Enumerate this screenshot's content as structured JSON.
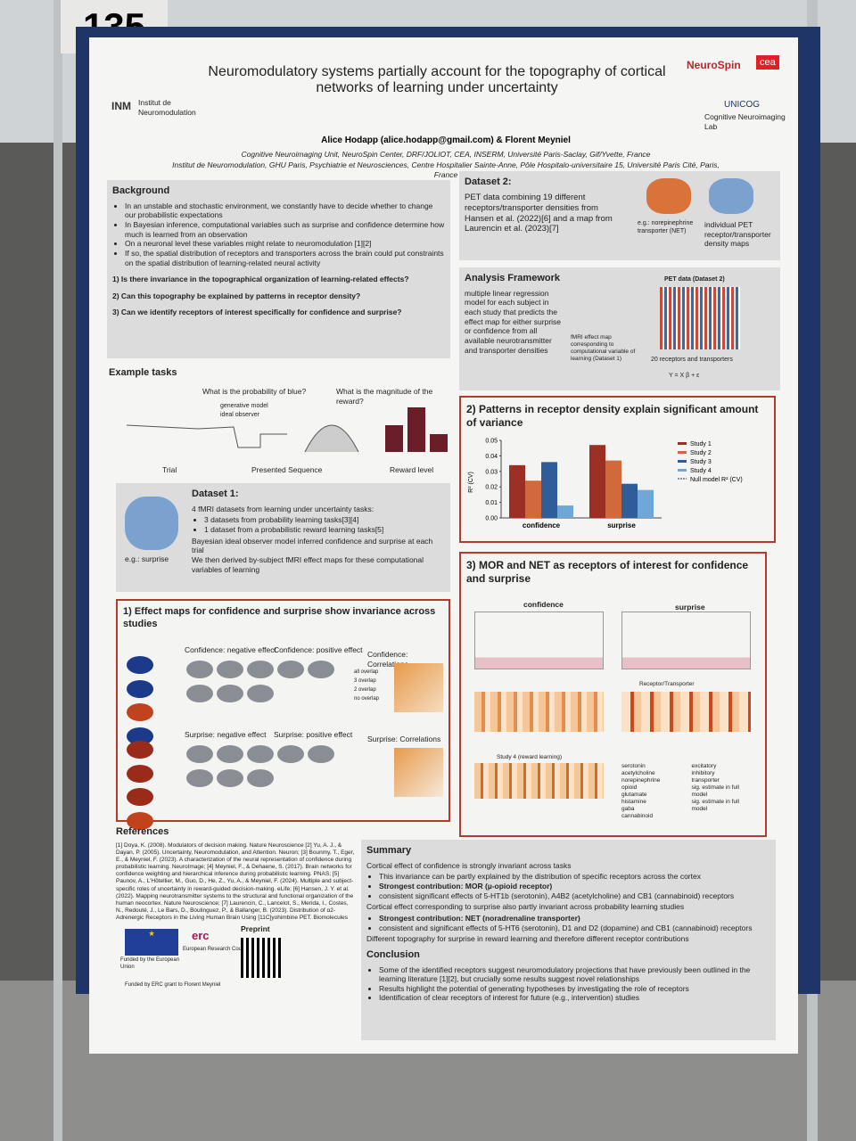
{
  "board_number": "135",
  "header": {
    "title": "Neuromodulatory systems partially account for the topography of cortical networks of learning under uncertainty",
    "authors": "Alice Hodapp (alice.hodapp@gmail.com) & Florent Meyniel",
    "affiliations": [
      "Cognitive Neuroimaging Unit, NeuroSpin Center, DRF/JOLIOT, CEA, INSERM, Université Paris-Saclay, Gif/Yvette, France",
      "Institut de Neuromodulation, GHU Paris, Psychiatrie et Neurosciences, Centre Hospitalier Sainte-Anne, Pôle Hospitalo-universitaire 15, Université Paris Cité, Paris, France"
    ],
    "logo_left": "INM",
    "logo_left_text": "Institut de Neuromodulation",
    "logo_right": "NeuroSpin",
    "logo_cea": "cea",
    "logo_unicog": "UNICOG",
    "logo_unicog_text": "Cognitive Neuroimaging Lab"
  },
  "background": {
    "heading": "Background",
    "bullets": [
      "In an unstable and stochastic environment, we constantly have to decide whether to change our probabilistic expectations",
      "In Bayesian inference, computational variables such as surprise and confidence determine how much is learned from an observation",
      "On a neuronal level these variables might relate to neuromodulation [1][2]",
      "If so, the spatial distribution of receptors and transporters across the brain could put constraints on the spatial distribution of learning-related neural activity"
    ],
    "questions": [
      "1) Is there invariance in the topographical organization of learning-related effects?",
      "2) Can this topography be explained by patterns in receptor density?",
      "3) Can we identify receptors of interest specifically for confidence and surprise?"
    ]
  },
  "example_tasks": {
    "heading": "Example tasks",
    "question_1": "What is the probability of blue?",
    "question_2": "What is the magnitude of the reward?",
    "legend_1": "generative model",
    "legend_2": "ideal observer",
    "x_label_1": "Trial",
    "x_label_2": "Presented Sequence",
    "x_label_3": "Reward level"
  },
  "dataset1": {
    "heading": "Dataset 1:",
    "line_1": "4 fMRI datasets from learning under uncertainty tasks:",
    "sub_1": "3 datasets from probability learning tasks[3][4]",
    "sub_2": "1 dataset from a probabilistic reward learning tasks[5]",
    "line_2": "Bayesian ideal observer model inferred confidence and surprise at each trial",
    "line_3": "We then derived by-subject fMRI effect maps for these computational variables of learning",
    "caption": "e.g.: surprise"
  },
  "section1": {
    "heading": "1) Effect maps for confidence and surprise show invariance across studies",
    "conf_neg": "Confidence: negative effect",
    "conf_pos": "Confidence: positive effect",
    "conf_corr": "Confidence: Correlations",
    "surp_neg": "Surprise: negative effect",
    "surp_pos": "Surprise: positive effect",
    "surp_corr": "Surprise: Correlations",
    "overlaps": [
      "all overlap",
      "3 overlap",
      "2 overlap",
      "no overlap"
    ]
  },
  "references": {
    "heading": "References",
    "text": "[1] Doya, K. (2008). Modulators of decision making. Nature Neuroscience [2] Yu, A. J., & Dayan, P. (2005). Uncertainty, Neuromodulation, and Attention. Neuron; [3] Bounmy, T., Eger, E., & Meyniel, F. (2023). A characterization of the neural representation of confidence during probabilistic learning. NeuroImage; [4] Meyniel, F., & Dehaene, S. (2017). Brain networks for confidence weighting and hierarchical inference during probabilistic learning. PNAS; [5] Paunov, A., L'Hôtellier, M., Guo, D., He, Z., Yu, A., & Meyniel, F. (2024). Multiple and subject-specific roles of uncertainty in reward-guided decision-making. eLife; [6] Hansen, J. Y. et al. (2022). Mapping neurotransmitter systems to the structural and functional organization of the human neocortex. Nature Neuroscience; [7] Laurencin, C., Lancelot, S., Merida, I., Costes, N., Redouté, J., Le Bars, D., Boulinguez, P., & Ballanger, B. (2023). Distribution of α2-Adrenergic Receptors in the Living Human Brain Using [11C]yohimbine PET. Biomolecules",
    "eu": "Funded by the European Union",
    "erc": "erc",
    "erc_text": "European Research Council",
    "preprint": "Preprint",
    "funding": "Funded by ERC grant to Florent Meyniel"
  },
  "dataset2": {
    "heading": "Dataset 2:",
    "text": "PET data combining 19 different receptors/transporter densities from Hansen et al. (2022)[6] and a map from Laurencin et al. (2023)[7]",
    "caption_1": "e.g.: norepinephrine transporter (NET)",
    "caption_2": "individual PET receptor/transporter density maps"
  },
  "analysis": {
    "heading": "Analysis Framework",
    "text": "multiple linear regression model for each subject in each study that predicts the effect map for either surprise or confidence from all available neurotransmitter and transporter densities",
    "fmri": "fMRI effect map corresponding to computational variable of learning (Dataset 1)",
    "pet": "PET data (Dataset 2)",
    "receptors": "20 receptors and transporters",
    "equation": "Y = X β + ε"
  },
  "section2": {
    "heading": "2) Patterns in receptor density explain significant amount of variance",
    "y_label": "R² (CV)",
    "null_model": "Null model R² (CV)"
  },
  "chart_data": {
    "type": "bar",
    "categories": [
      "confidence",
      "surprise"
    ],
    "series": [
      {
        "name": "Study 1",
        "color": "#9c2f24",
        "values": [
          0.034,
          0.047
        ]
      },
      {
        "name": "Study 2",
        "color": "#d2693a",
        "values": [
          0.024,
          0.037
        ]
      },
      {
        "name": "Study 3",
        "color": "#2f5d9a",
        "values": [
          0.036,
          0.022
        ]
      },
      {
        "name": "Study 4",
        "color": "#6fa7d6",
        "values": [
          0.008,
          0.018
        ]
      }
    ],
    "ylim": [
      0,
      0.05
    ],
    "yticks": [
      {
        "value": 0,
        "label": "0.00"
      },
      {
        "value": 0.01,
        "label": "0.01"
      },
      {
        "value": 0.02,
        "label": "0.02"
      },
      {
        "value": 0.03,
        "label": "0.03"
      },
      {
        "value": 0.04,
        "label": "0.04"
      },
      {
        "value": 0.05,
        "label": "0.05"
      }
    ]
  },
  "section3": {
    "heading": "3) MOR and NET as receptors of interest for confidence and surprise",
    "panel_1": "confidence",
    "panel_2": "surprise",
    "x_label": "Receptor/Transporter",
    "heat_title": "Study 4 (reward learning)",
    "legend": [
      "serotonin",
      "acetylcholine",
      "norepinephrine",
      "opioid",
      "glutamate",
      "histamine",
      "gaba",
      "cannabinoid",
      "excitatory",
      "inhibitory",
      "transporter",
      "sig. estimate in full model",
      "sig. estimate in full model"
    ]
  },
  "summary": {
    "heading": "Summary",
    "lines": [
      "Cortical effect of confidence is strongly invariant across tasks",
      "This invariance can be partly explained by the distribution of specific receptors across the cortex",
      "Strongest contribution: MOR (µ-opioid receptor)",
      "consistent significant effects of 5-HT1b (serotonin), A4B2 (acetylcholine) and CB1 (cannabinoid) receptors",
      "Cortical effect corresponding to surprise also partly invariant across probability learning studies",
      "Strongest contribution: NET (noradrenaline transporter)",
      "consistent and significant effects of 5-HT6 (serotonin), D1 and D2 (dopamine) and CB1 (cannabinoid) receptors",
      "Different topography for surprise in reward learning and therefore different receptor contributions"
    ]
  },
  "conclusion": {
    "heading": "Conclusion",
    "lines": [
      "Some of the identified receptors suggest neuromodulatory projections that have previously been outlined in the learning literature [1][2], but crucially some results suggest novel relationships",
      "Results highlight the potential of generating hypotheses by investigating the role of receptors",
      "Identification of clear receptors of interest for future (e.g., intervention) studies"
    ]
  }
}
